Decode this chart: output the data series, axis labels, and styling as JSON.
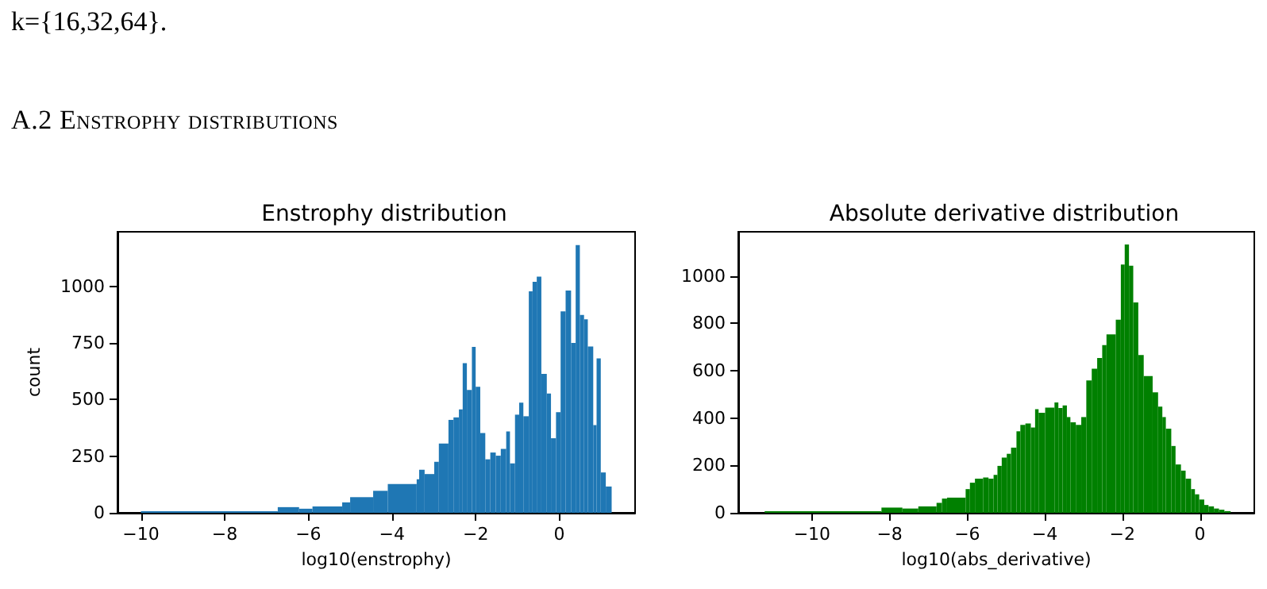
{
  "chart_data": [
    {
      "type": "histogram",
      "title": "Enstrophy distribution",
      "xlabel": "log10(enstrophy)",
      "ylabel": "count",
      "annotations": [
        "k={16,32,64}.",
        "A.2 Enstrophy distributions"
      ],
      "color": "#1f77b4",
      "bins": [
        -10.0,
        -6.73,
        -6.22,
        -5.9,
        -5.19,
        -5.0,
        -4.45,
        -4.1,
        -3.41,
        -3.35,
        -3.22,
        -2.99,
        -2.88,
        -2.65,
        -2.53,
        -2.4,
        -2.31,
        -2.21,
        -2.09,
        -2.0,
        -1.89,
        -1.77,
        -1.65,
        -1.52,
        -1.4,
        -1.27,
        -1.18,
        -1.06,
        -0.96,
        -0.86,
        -0.73,
        -0.64,
        -0.54,
        -0.43,
        -0.3,
        -0.2,
        -0.08,
        0.03,
        0.15,
        0.28,
        0.39,
        0.49,
        0.59,
        0.68,
        0.81,
        0.89,
        0.99,
        1.11,
        1.25
      ],
      "values": [
        7,
        25,
        18,
        28,
        46,
        69,
        97,
        127,
        148,
        190,
        171,
        225,
        306,
        410,
        421,
        456,
        660,
        542,
        732,
        556,
        352,
        236,
        266,
        252,
        282,
        359,
        218,
        433,
        486,
        426,
        977,
        1019,
        1042,
        613,
        526,
        329,
        444,
        889,
        981,
        750,
        1181,
        873,
        854,
        734,
        387,
        681,
        178,
        116
      ],
      "xlim": [
        -10.56,
        1.81
      ],
      "ylim": [
        0,
        1240
      ],
      "xticks": [
        -10,
        -8,
        -6,
        -4,
        -2,
        0
      ],
      "yticks": [
        0,
        250,
        500,
        750,
        1000
      ]
    },
    {
      "type": "histogram",
      "title": "Absolute derivative distribution",
      "xlabel": "log10(abs_derivative)",
      "color": "#008000",
      "bins": [
        -11.22,
        -8.21,
        -7.67,
        -7.26,
        -6.79,
        -6.65,
        -6.52,
        -6.04,
        -5.93,
        -5.8,
        -5.59,
        -5.45,
        -5.32,
        -5.22,
        -5.11,
        -4.98,
        -4.87,
        -4.73,
        -4.63,
        -4.5,
        -4.36,
        -4.25,
        -4.16,
        -3.99,
        -3.75,
        -3.65,
        -3.54,
        -3.43,
        -3.34,
        -3.2,
        -3.06,
        -2.93,
        -2.79,
        -2.65,
        -2.52,
        -2.41,
        -2.17,
        -2.04,
        -1.94,
        -1.83,
        -1.72,
        -1.59,
        -1.45,
        -1.22,
        -1.08,
        -0.97,
        -0.88,
        -0.74,
        -0.63,
        -0.49,
        -0.37,
        -0.23,
        -0.13,
        -0.02,
        0.11,
        0.22,
        0.36,
        0.49,
        0.63,
        0.79
      ],
      "values": [
        7,
        22,
        18,
        27,
        42,
        60,
        64,
        100,
        127,
        144,
        149,
        144,
        160,
        198,
        233,
        249,
        275,
        344,
        371,
        377,
        360,
        437,
        422,
        444,
        466,
        442,
        453,
        404,
        382,
        371,
        404,
        559,
        608,
        653,
        708,
        753,
        815,
        1048,
        1132,
        1043,
        888,
        666,
        577,
        508,
        448,
        404,
        355,
        282,
        204,
        178,
        144,
        100,
        78,
        56,
        33,
        27,
        18,
        13,
        7
      ],
      "xlim": [
        -11.9,
        1.4
      ],
      "ylim": [
        0,
        1186
      ],
      "xticks": [
        -10,
        -8,
        -6,
        -4,
        -2,
        0
      ],
      "yticks": [
        0,
        200,
        400,
        600,
        800,
        1000
      ]
    }
  ]
}
